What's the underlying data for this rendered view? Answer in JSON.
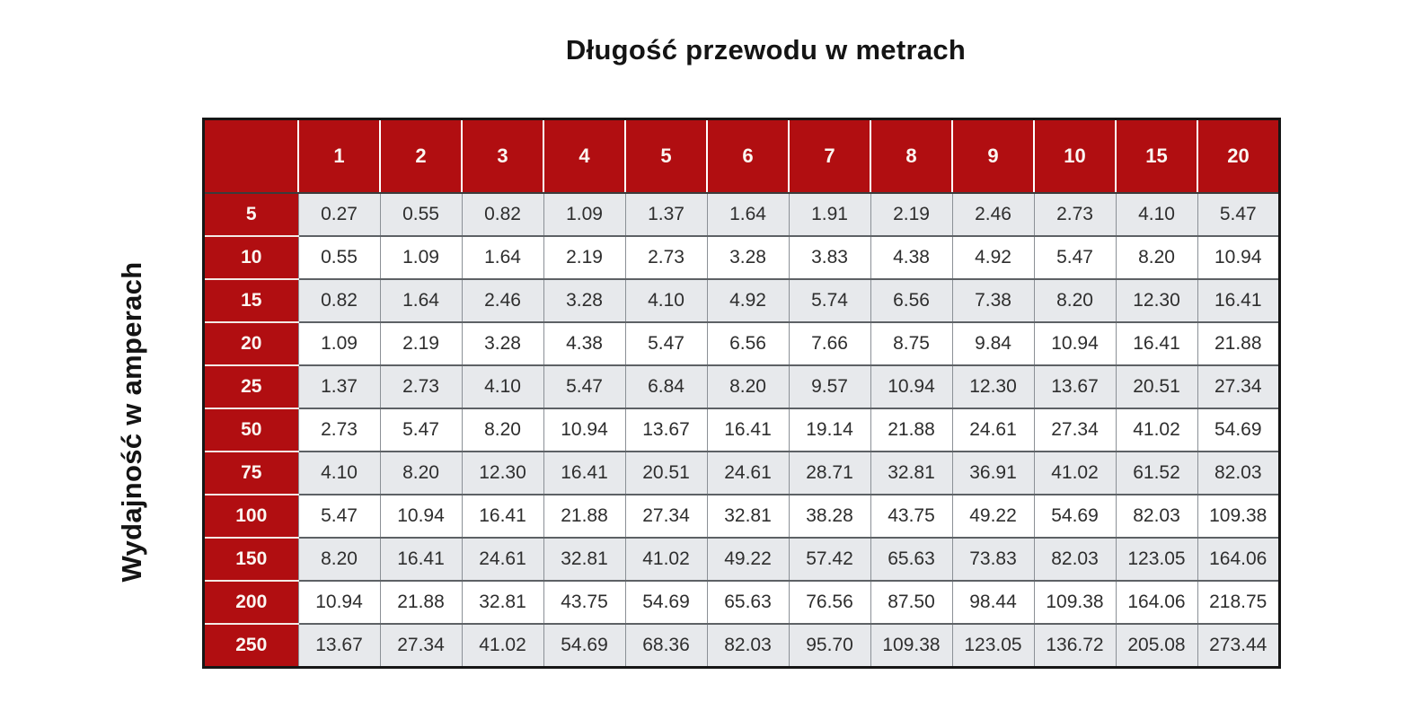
{
  "title": "Długość przewodu w metrach",
  "y_axis_label": "Wydajność w amperach",
  "colors": {
    "header_red": "#B10E11",
    "row_alt_gray": "#E7E9EC",
    "row_white": "#FFFFFF",
    "header_text": "#FBF7F2",
    "cell_text": "#2E2E2E",
    "outer_border": "#161616"
  },
  "chart_data": {
    "type": "table",
    "title": "Długość przewodu w metrach",
    "col_header_label": "Długość przewodu w metrach",
    "row_header_label": "Wydajność w amperach",
    "columns": [
      "1",
      "2",
      "3",
      "4",
      "5",
      "6",
      "7",
      "8",
      "9",
      "10",
      "15",
      "20"
    ],
    "rows": [
      {
        "label": "5",
        "values": [
          0.27,
          0.55,
          0.82,
          1.09,
          1.37,
          1.64,
          1.91,
          2.19,
          2.46,
          2.73,
          4.1,
          5.47
        ]
      },
      {
        "label": "10",
        "values": [
          0.55,
          1.09,
          1.64,
          2.19,
          2.73,
          3.28,
          3.83,
          4.38,
          4.92,
          5.47,
          8.2,
          10.94
        ]
      },
      {
        "label": "15",
        "values": [
          0.82,
          1.64,
          2.46,
          3.28,
          4.1,
          4.92,
          5.74,
          6.56,
          7.38,
          8.2,
          12.3,
          16.41
        ]
      },
      {
        "label": "20",
        "values": [
          1.09,
          2.19,
          3.28,
          4.38,
          5.47,
          6.56,
          7.66,
          8.75,
          9.84,
          10.94,
          16.41,
          21.88
        ]
      },
      {
        "label": "25",
        "values": [
          1.37,
          2.73,
          4.1,
          5.47,
          6.84,
          8.2,
          9.57,
          10.94,
          12.3,
          13.67,
          20.51,
          27.34
        ]
      },
      {
        "label": "50",
        "values": [
          2.73,
          5.47,
          8.2,
          10.94,
          13.67,
          16.41,
          19.14,
          21.88,
          24.61,
          27.34,
          41.02,
          54.69
        ]
      },
      {
        "label": "75",
        "values": [
          4.1,
          8.2,
          12.3,
          16.41,
          20.51,
          24.61,
          28.71,
          32.81,
          36.91,
          41.02,
          61.52,
          82.03
        ]
      },
      {
        "label": "100",
        "values": [
          5.47,
          10.94,
          16.41,
          21.88,
          27.34,
          32.81,
          38.28,
          43.75,
          49.22,
          54.69,
          82.03,
          109.38
        ]
      },
      {
        "label": "150",
        "values": [
          8.2,
          16.41,
          24.61,
          32.81,
          41.02,
          49.22,
          57.42,
          65.63,
          73.83,
          82.03,
          123.05,
          164.06
        ]
      },
      {
        "label": "200",
        "values": [
          10.94,
          21.88,
          32.81,
          43.75,
          54.69,
          65.63,
          76.56,
          87.5,
          98.44,
          109.38,
          164.06,
          218.75
        ]
      },
      {
        "label": "250",
        "values": [
          13.67,
          27.34,
          41.02,
          54.69,
          68.36,
          82.03,
          95.7,
          109.38,
          123.05,
          136.72,
          205.08,
          273.44
        ]
      }
    ],
    "value_format": "2-decimals",
    "grid": true,
    "legend": "none"
  }
}
